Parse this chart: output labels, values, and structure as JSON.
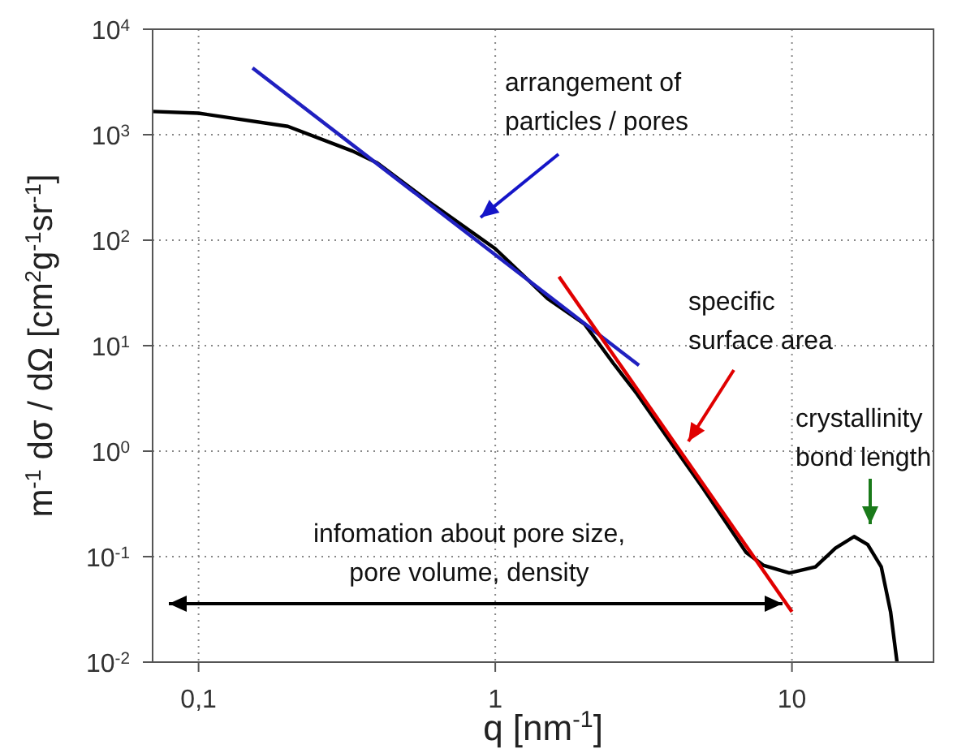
{
  "chart_data": {
    "type": "line",
    "xlabel": "q [nm$^{-1}$]",
    "ylabel": "m$^{-1}$ dσ / dΩ [cm$^{2}$g$^{-1}$sr$^{-1}$]",
    "log": "xy",
    "grid": true,
    "xlim": [
      0.07,
      30
    ],
    "ylim": [
      0.01,
      10000
    ],
    "xticks": [
      {
        "value": 0.1,
        "label": "0,1"
      },
      1,
      10
    ],
    "yticks": [
      {
        "value": 0.01,
        "label": "10$^{-2}$"
      },
      {
        "value": 0.1,
        "label": "10$^{-1}$"
      },
      {
        "value": 1,
        "label": "10$^{0}$"
      },
      {
        "value": 10,
        "label": "10$^{1}$"
      },
      {
        "value": 100,
        "label": "10$^{2}$"
      },
      {
        "value": 1000,
        "label": "10$^{3}$"
      },
      {
        "value": 10000,
        "label": "10$^{4}$"
      }
    ],
    "series": [
      {
        "color": "#000000",
        "x": [
          0.07,
          0.1,
          0.2,
          0.33,
          0.4,
          0.6,
          1,
          1.5,
          2,
          2.5,
          3,
          4,
          5,
          7,
          8,
          9.8,
          12,
          14,
          16.2,
          18,
          20,
          21.5,
          22.6
        ],
        "values": [
          1660,
          1600,
          1200,
          700,
          540,
          230,
          83,
          28,
          16,
          6.8,
          3.5,
          1.1,
          0.45,
          0.11,
          0.083,
          0.07,
          0.08,
          0.12,
          0.155,
          0.13,
          0.08,
          0.03,
          0.01
        ]
      },
      {
        "color": "#2020c0",
        "x": [
          0.152,
          3.05
        ],
        "values": [
          4300,
          6.5
        ]
      },
      {
        "color": "#e00000",
        "x": [
          1.64,
          10
        ],
        "values": [
          45,
          0.03
        ]
      }
    ],
    "annotations": [
      "arrangement of\nparticles / pores",
      "specific\nsurface area",
      "crystallinity\nbond length",
      "infomation about pore size,\npore volume, density"
    ]
  }
}
